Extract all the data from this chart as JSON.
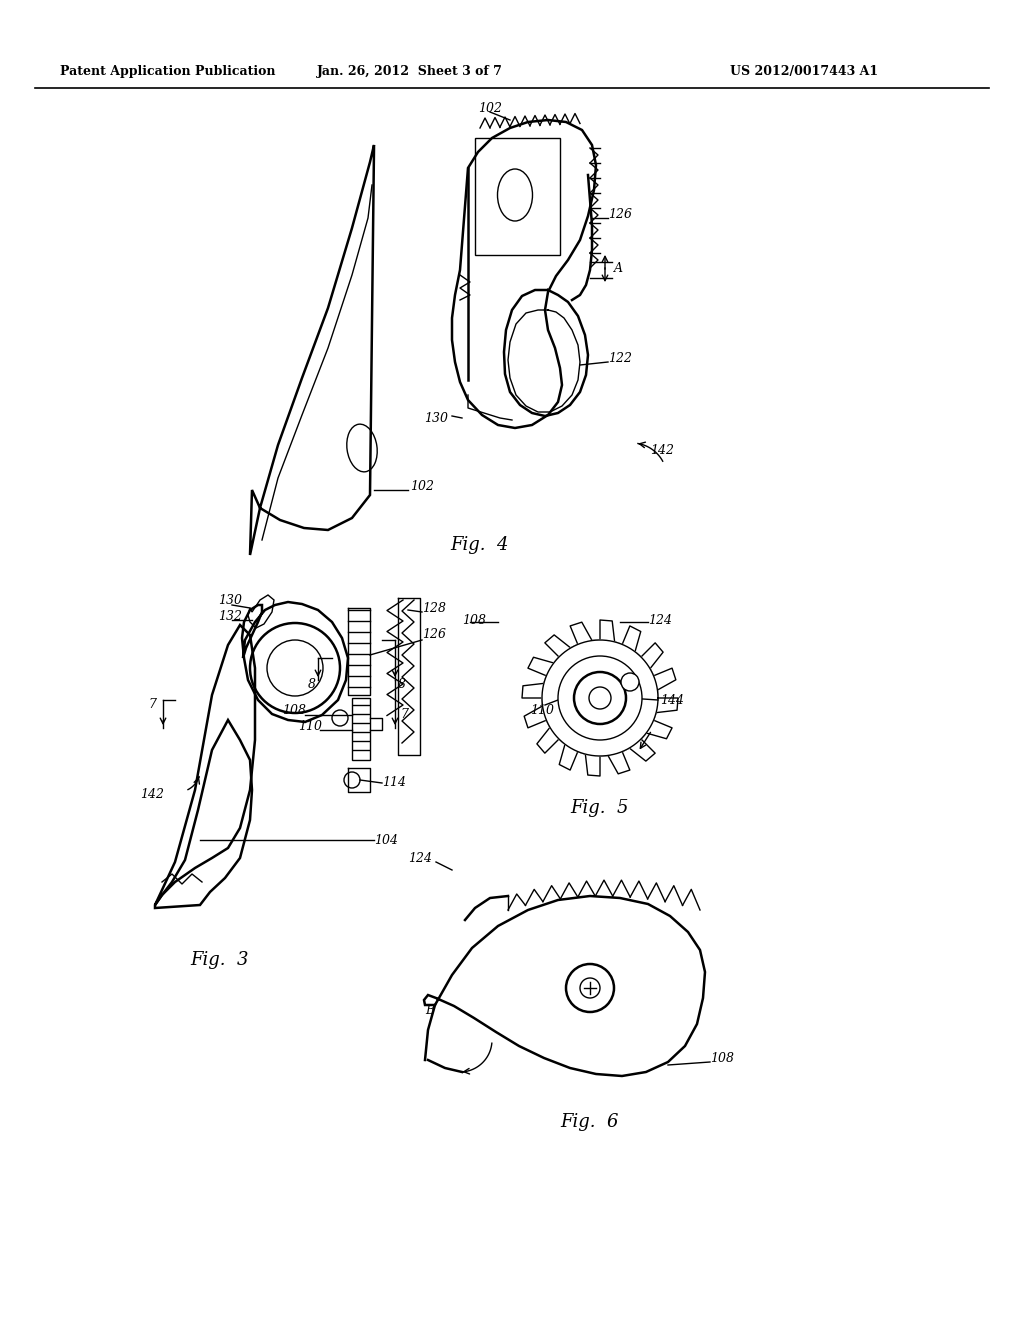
{
  "background_color": "#ffffff",
  "header_left": "Patent Application Publication",
  "header_center": "Jan. 26, 2012  Sheet 3 of 7",
  "header_right": "US 2012/0017443 A1",
  "fig3_label": "Fig.  3",
  "fig4_label": "Fig.  4",
  "fig5_label": "Fig.  5",
  "fig6_label": "Fig.  6",
  "line_color": "#000000",
  "lw_main": 1.8,
  "lw_thin": 1.0
}
